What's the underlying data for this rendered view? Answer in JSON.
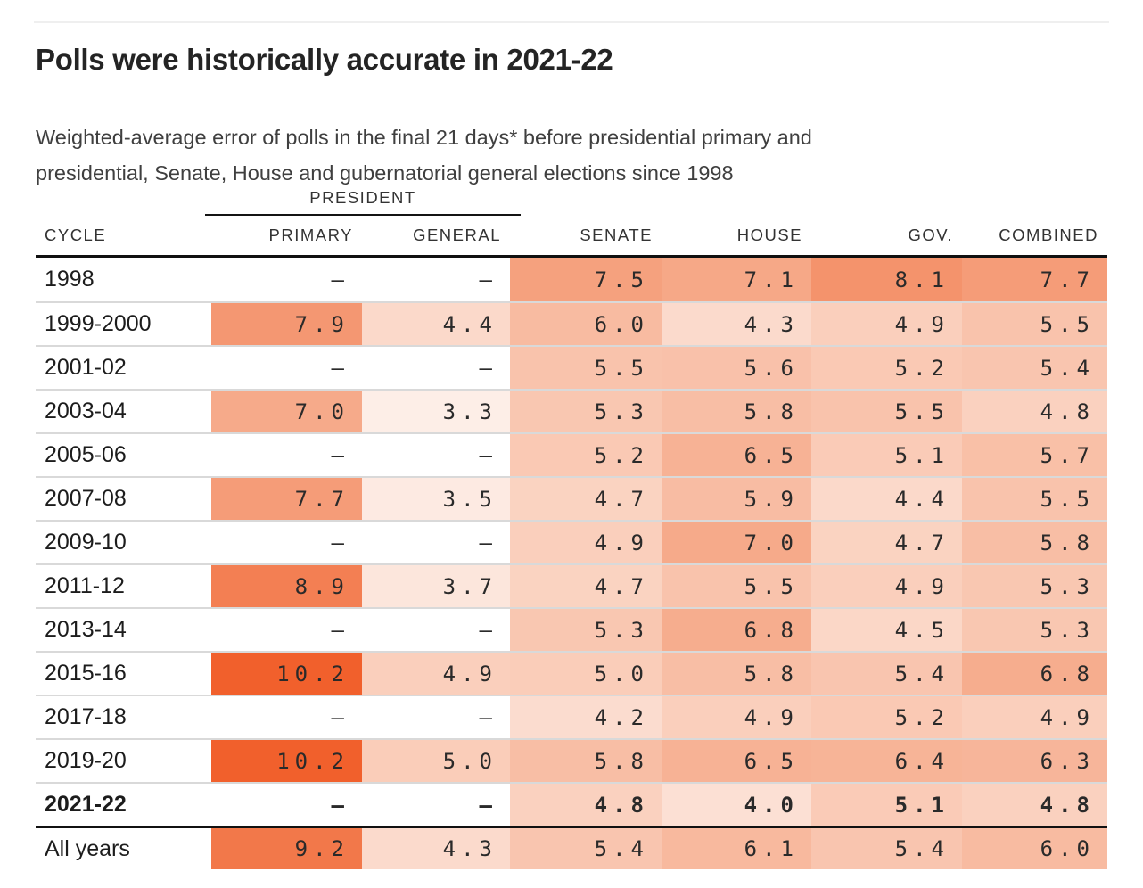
{
  "header": {
    "subtitle_lines": [
      "Weighted-average error of polls in the final 21 days* before presidential primary and",
      "presidential, Senate, House and gubernatorial general elections since 1998"
    ]
  },
  "chart_data": {
    "type": "heatmap",
    "title": "Polls were historically accurate in 2021-22",
    "subtitle": "Weighted-average error of polls in the final 21 days* before presidential primary and presidential, Senate, House and gubernatorial general elections since 1998",
    "column_group": {
      "label": "PRESIDENT",
      "spans": [
        "PRIMARY",
        "GENERAL"
      ]
    },
    "columns": [
      {
        "key": "cycle",
        "label": "CYCLE"
      },
      {
        "key": "primary",
        "label": "PRIMARY"
      },
      {
        "key": "general",
        "label": "GENERAL"
      },
      {
        "key": "senate",
        "label": "SENATE"
      },
      {
        "key": "house",
        "label": "HOUSE"
      },
      {
        "key": "gov",
        "label": "GOV."
      },
      {
        "key": "combined",
        "label": "COMBINED"
      }
    ],
    "no_data_symbol": "–",
    "rows": [
      {
        "cycle": "1998",
        "values": [
          null,
          null,
          7.5,
          7.1,
          8.1,
          7.7
        ]
      },
      {
        "cycle": "1999-2000",
        "values": [
          7.9,
          4.4,
          6.0,
          4.3,
          4.9,
          5.5
        ]
      },
      {
        "cycle": "2001-02",
        "values": [
          null,
          null,
          5.5,
          5.6,
          5.2,
          5.4
        ]
      },
      {
        "cycle": "2003-04",
        "values": [
          7.0,
          3.3,
          5.3,
          5.8,
          5.5,
          4.8
        ]
      },
      {
        "cycle": "2005-06",
        "values": [
          null,
          null,
          5.2,
          6.5,
          5.1,
          5.7
        ]
      },
      {
        "cycle": "2007-08",
        "values": [
          7.7,
          3.5,
          4.7,
          5.9,
          4.4,
          5.5
        ]
      },
      {
        "cycle": "2009-10",
        "values": [
          null,
          null,
          4.9,
          7.0,
          4.7,
          5.8
        ]
      },
      {
        "cycle": "2011-12",
        "values": [
          8.9,
          3.7,
          4.7,
          5.5,
          4.9,
          5.3
        ]
      },
      {
        "cycle": "2013-14",
        "values": [
          null,
          null,
          5.3,
          6.8,
          4.5,
          5.3
        ]
      },
      {
        "cycle": "2015-16",
        "values": [
          10.2,
          4.9,
          5.0,
          5.8,
          5.4,
          6.8
        ]
      },
      {
        "cycle": "2017-18",
        "values": [
          null,
          null,
          4.2,
          4.9,
          5.2,
          4.9
        ]
      },
      {
        "cycle": "2019-20",
        "values": [
          10.2,
          5.0,
          5.8,
          6.5,
          6.4,
          6.3
        ]
      },
      {
        "cycle": "2021-22",
        "values": [
          null,
          null,
          4.8,
          4.0,
          5.1,
          4.8
        ],
        "bold": true
      },
      {
        "cycle": "All years",
        "values": [
          9.2,
          4.3,
          5.4,
          6.1,
          5.4,
          6.0
        ],
        "separator_above": true
      }
    ],
    "color_scale": {
      "description": "higher error = darker orange",
      "stops": [
        [
          3.3,
          "#fdeee7"
        ],
        [
          5.5,
          "#f9c3ac"
        ],
        [
          7.5,
          "#f5a17e"
        ],
        [
          10.2,
          "#f1602c"
        ]
      ]
    }
  }
}
